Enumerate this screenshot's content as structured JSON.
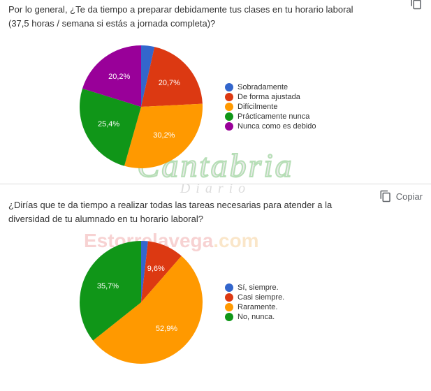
{
  "copy_label": "Copiar",
  "chart1": {
    "type": "pie",
    "question": "Por lo general, ¿Te da tiempo a preparar debidamente tus clases en tu horario laboral (37,5 horas / semana si estás a jornada completa)?",
    "items": [
      {
        "label": "Sobradamente",
        "color": "#3366cc",
        "value": 3.5,
        "show_percent": false,
        "text": ""
      },
      {
        "label": "De forma ajustada",
        "color": "#dc3912",
        "value": 20.7,
        "show_percent": true,
        "text": "20,7%"
      },
      {
        "label": "Difícilmente",
        "color": "#ff9900",
        "value": 30.2,
        "show_percent": true,
        "text": "30,2%"
      },
      {
        "label": "Prácticamente nunca",
        "color": "#109618",
        "value": 25.4,
        "show_percent": true,
        "text": "25,4%"
      },
      {
        "label": "Nunca como es debido",
        "color": "#990099",
        "value": 20.2,
        "show_percent": true,
        "text": "20,2%"
      }
    ],
    "legend_fontsize": 11,
    "label_fontsize": 11,
    "label_color": "#ffffff",
    "start_angle_deg": -90
  },
  "chart2": {
    "type": "pie",
    "question": "¿Dirías que te da tiempo a realizar todas las tareas necesarias para atender a la diversidad de tu alumnado en tu horario laboral?",
    "items": [
      {
        "label": "Sí, siempre.",
        "color": "#3366cc",
        "value": 1.8,
        "show_percent": false,
        "text": ""
      },
      {
        "label": "Casi siempre.",
        "color": "#dc3912",
        "value": 9.6,
        "show_percent": true,
        "text": "9,6%"
      },
      {
        "label": "Raramente.",
        "color": "#ff9900",
        "value": 52.9,
        "show_percent": true,
        "text": "52,9%"
      },
      {
        "label": "No, nunca.",
        "color": "#109618",
        "value": 35.7,
        "show_percent": true,
        "text": "35,7%"
      }
    ],
    "legend_fontsize": 11,
    "label_fontsize": 11,
    "label_color": "#ffffff",
    "start_angle_deg": -90
  },
  "watermark1": {
    "line1": "Cantabria",
    "line2": "Diario"
  },
  "watermark2": {
    "partA": "Estorrelavega",
    "partB": ".com"
  }
}
